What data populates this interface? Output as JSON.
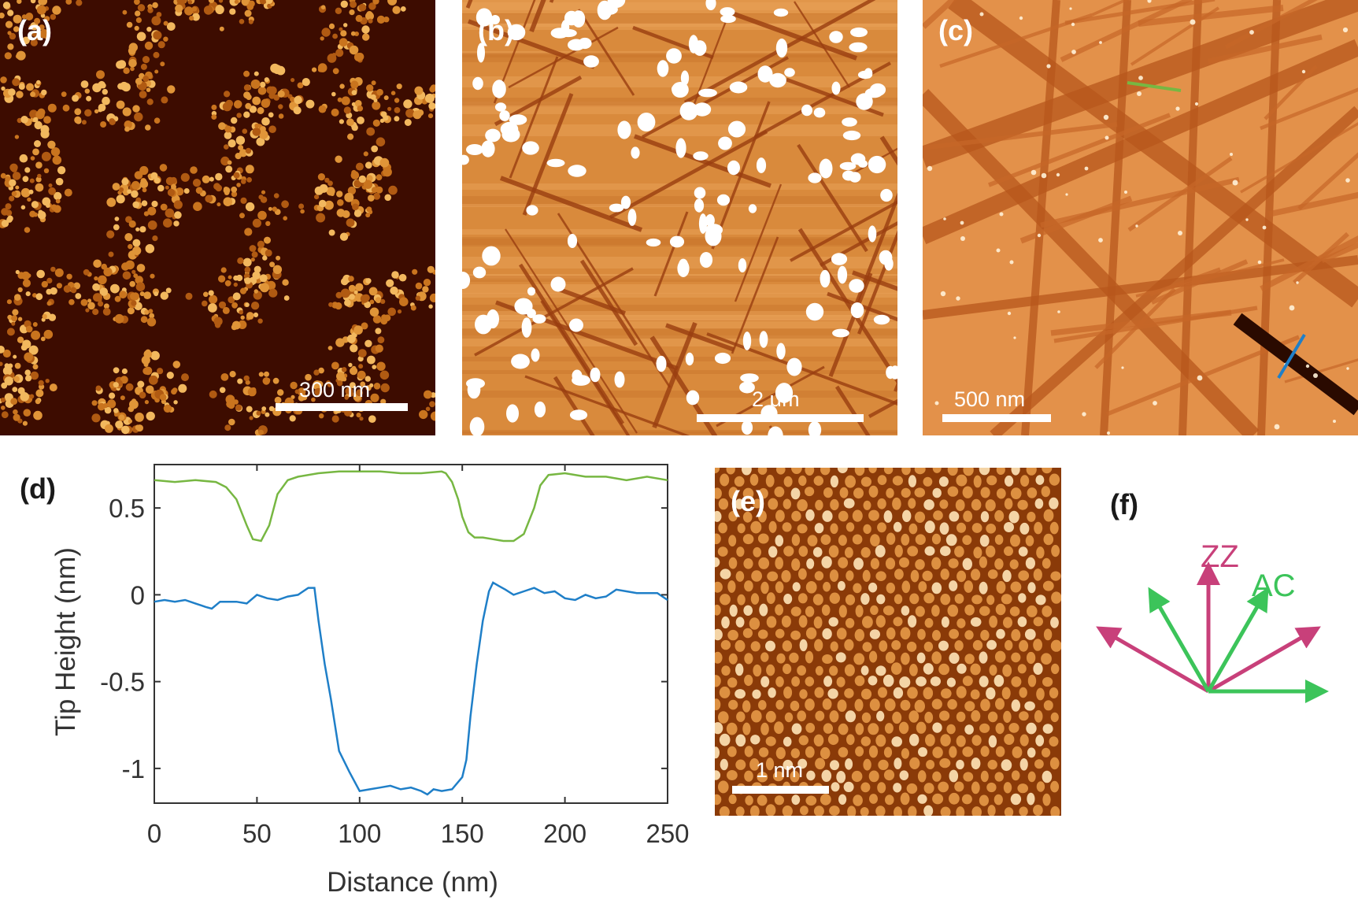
{
  "panels": {
    "a": {
      "label": "(a)",
      "scale_label": "300 nm",
      "texture": "dendritic-islands"
    },
    "b": {
      "label": "(b)",
      "scale_label": "2 μm",
      "texture": "domains-with-white-particles"
    },
    "c": {
      "label": "(c)",
      "scale_label": "500 nm",
      "texture": "terraces-with-trenches"
    },
    "d": {
      "label": "(d)"
    },
    "e": {
      "label": "(e)",
      "scale_label": "1 nm",
      "texture": "atomic-lattice"
    },
    "f": {
      "label": "(f)",
      "zz_label": "ZZ",
      "ac_label": "AC",
      "zz_color": "#c8407a",
      "ac_color": "#3cc45a",
      "zz_angles_deg": [
        90,
        150,
        30
      ],
      "ac_angles_deg": [
        120,
        60,
        0
      ]
    }
  },
  "colors": {
    "green_line": "#77b742",
    "blue_line": "#1f7fc8"
  },
  "chart_data": {
    "type": "line",
    "xlabel": "Distance (nm)",
    "ylabel": "Tip Height (nm)",
    "xlim": [
      0,
      250
    ],
    "ylim": [
      -1.2,
      0.75
    ],
    "xticks": [
      0,
      50,
      100,
      150,
      200,
      250
    ],
    "yticks": [
      -1,
      -0.5,
      0,
      0.5
    ],
    "ytick_labels": [
      "-1",
      "-0.5",
      "0",
      "0.5"
    ],
    "series": [
      {
        "color": "#77b742",
        "x": [
          0,
          10,
          20,
          30,
          35,
          40,
          45,
          48,
          52,
          56,
          60,
          65,
          70,
          80,
          90,
          100,
          110,
          120,
          130,
          140,
          142,
          145,
          148,
          150,
          153,
          156,
          160,
          165,
          170,
          175,
          180,
          185,
          188,
          192,
          200,
          210,
          220,
          230,
          240,
          250
        ],
        "y": [
          0.66,
          0.65,
          0.66,
          0.65,
          0.62,
          0.55,
          0.4,
          0.32,
          0.31,
          0.4,
          0.58,
          0.66,
          0.68,
          0.7,
          0.71,
          0.71,
          0.71,
          0.7,
          0.7,
          0.71,
          0.7,
          0.65,
          0.55,
          0.45,
          0.36,
          0.33,
          0.33,
          0.32,
          0.31,
          0.31,
          0.35,
          0.5,
          0.63,
          0.69,
          0.7,
          0.68,
          0.68,
          0.66,
          0.68,
          0.66
        ]
      },
      {
        "color": "#1f7fc8",
        "x": [
          0,
          5,
          10,
          15,
          20,
          25,
          28,
          32,
          40,
          45,
          50,
          55,
          60,
          65,
          70,
          75,
          78,
          80,
          83,
          86,
          90,
          95,
          100,
          105,
          110,
          115,
          120,
          125,
          130,
          133,
          136,
          140,
          145,
          150,
          152,
          154,
          157,
          160,
          163,
          165,
          168,
          171,
          175,
          180,
          185,
          190,
          195,
          200,
          205,
          210,
          215,
          220,
          225,
          230,
          235,
          240,
          245,
          250
        ],
        "y": [
          -0.04,
          -0.03,
          -0.04,
          -0.03,
          -0.05,
          -0.07,
          -0.08,
          -0.04,
          -0.04,
          -0.05,
          0.0,
          -0.02,
          -0.03,
          -0.01,
          0.0,
          0.04,
          0.04,
          -0.15,
          -0.4,
          -0.6,
          -0.9,
          -1.02,
          -1.13,
          -1.12,
          -1.11,
          -1.1,
          -1.12,
          -1.11,
          -1.13,
          -1.15,
          -1.12,
          -1.13,
          -1.12,
          -1.05,
          -0.95,
          -0.7,
          -0.4,
          -0.15,
          0.02,
          0.07,
          0.05,
          0.03,
          0.0,
          0.02,
          0.04,
          0.01,
          0.02,
          -0.02,
          -0.03,
          0.0,
          -0.02,
          -0.01,
          0.03,
          0.02,
          0.01,
          0.01,
          0.01,
          -0.03
        ]
      }
    ]
  }
}
